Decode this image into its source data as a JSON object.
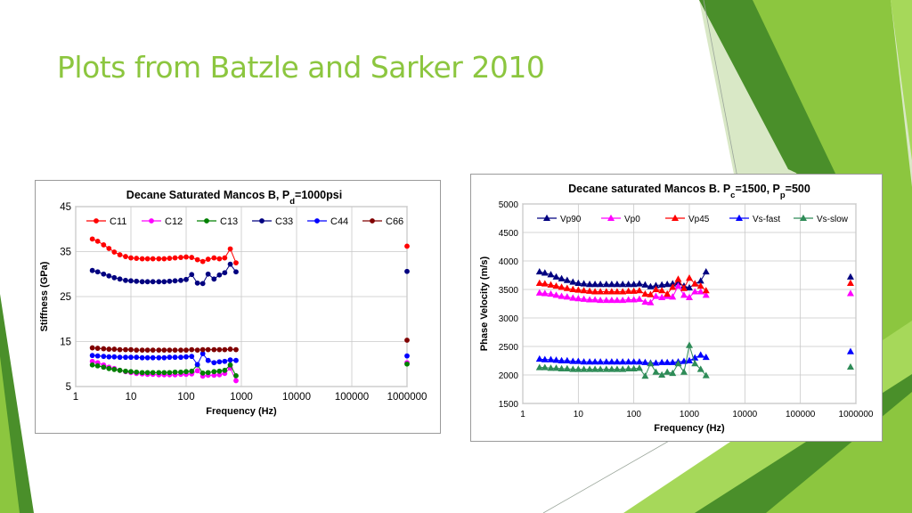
{
  "slide": {
    "title": "Plots from Batzle and Sarker 2010",
    "accent_color": "#8cc63f"
  },
  "chart_data": [
    {
      "type": "scatter",
      "title": "Decane Saturated Mancos B, P",
      "title_subscript": "d",
      "title_suffix": "=1000psi",
      "xlabel": "Frequency (Hz)",
      "ylabel": "Stiffness (GPa)",
      "x_scale": "log",
      "xlim": [
        1,
        1000000
      ],
      "ylim": [
        5,
        45
      ],
      "x_ticks": [
        "1",
        "10",
        "100",
        "1000",
        "10000",
        "100000",
        "1000000"
      ],
      "y_ticks": [
        "5",
        "15",
        "25",
        "35",
        "45"
      ],
      "grid": true,
      "legend_position": "top",
      "x": [
        2,
        2.5,
        3.2,
        4,
        5,
        6.3,
        8,
        10,
        12.6,
        16,
        20,
        25,
        32,
        40,
        50,
        63,
        80,
        100,
        126,
        160,
        200,
        250,
        320,
        400,
        500,
        630,
        800
      ],
      "series": [
        {
          "name": "C11",
          "color": "#ff0000",
          "marker": "circle",
          "values": [
            37.8,
            37.3,
            36.5,
            35.7,
            34.9,
            34.3,
            33.9,
            33.6,
            33.5,
            33.4,
            33.4,
            33.4,
            33.4,
            33.4,
            33.5,
            33.6,
            33.7,
            33.8,
            33.7,
            33.2,
            32.8,
            33.3,
            33.6,
            33.4,
            33.6,
            35.6,
            32.5
          ],
          "far_x": 1000000,
          "far_value": 36.2
        },
        {
          "name": "C12",
          "color": "#ff00ff",
          "marker": "circle",
          "values": [
            10.6,
            10.3,
            9.8,
            9.3,
            9.0,
            8.6,
            8.3,
            8.1,
            7.9,
            7.8,
            7.7,
            7.7,
            7.6,
            7.6,
            7.6,
            7.6,
            7.7,
            7.7,
            7.8,
            8.5,
            7.3,
            7.5,
            7.5,
            7.6,
            7.9,
            9.1,
            6.3
          ],
          "far_x": 1000000,
          "far_value": 10.3
        },
        {
          "name": "C13",
          "color": "#008000",
          "marker": "circle",
          "values": [
            9.8,
            9.6,
            9.3,
            9.0,
            8.8,
            8.6,
            8.4,
            8.3,
            8.2,
            8.1,
            8.1,
            8.1,
            8.1,
            8.1,
            8.1,
            8.2,
            8.2,
            8.3,
            8.4,
            9.8,
            8.0,
            8.1,
            8.3,
            8.4,
            8.6,
            9.8,
            7.4
          ],
          "far_x": 1000000,
          "far_value": 10.0
        },
        {
          "name": "C33",
          "color": "#000080",
          "marker": "circle",
          "values": [
            30.8,
            30.5,
            30.0,
            29.6,
            29.2,
            28.9,
            28.6,
            28.5,
            28.4,
            28.3,
            28.3,
            28.3,
            28.3,
            28.3,
            28.4,
            28.5,
            28.6,
            28.8,
            29.9,
            28.0,
            27.9,
            30.0,
            28.9,
            29.8,
            30.3,
            32.2,
            30.5
          ],
          "far_x": 1000000,
          "far_value": 30.6
        },
        {
          "name": "C44",
          "color": "#0000ff",
          "marker": "circle",
          "values": [
            11.9,
            11.8,
            11.7,
            11.6,
            11.6,
            11.5,
            11.5,
            11.5,
            11.5,
            11.4,
            11.4,
            11.4,
            11.4,
            11.4,
            11.5,
            11.5,
            11.5,
            11.6,
            11.7,
            9.9,
            12.3,
            10.8,
            10.3,
            10.5,
            10.6,
            10.9,
            10.8
          ],
          "far_x": 1000000,
          "far_value": 11.8
        },
        {
          "name": "C66",
          "color": "#800000",
          "marker": "circle",
          "values": [
            13.6,
            13.5,
            13.4,
            13.3,
            13.3,
            13.2,
            13.2,
            13.2,
            13.1,
            13.1,
            13.1,
            13.1,
            13.1,
            13.1,
            13.1,
            13.1,
            13.1,
            13.1,
            13.2,
            13.1,
            13.2,
            13.2,
            13.2,
            13.2,
            13.2,
            13.3,
            13.2
          ],
          "far_x": 1000000,
          "far_value": 15.3
        }
      ]
    },
    {
      "type": "scatter",
      "title": "Decane saturated Mancos B. P",
      "title_subscript": "c",
      "title_middle": "=1500, P",
      "title_subscript2": "p",
      "title_suffix": "=500",
      "xlabel": "Frequency (Hz)",
      "ylabel": "Phase Velocity (m/s)",
      "x_scale": "log",
      "xlim": [
        1,
        1000000
      ],
      "ylim": [
        1500,
        5000
      ],
      "x_ticks": [
        "1",
        "10",
        "100",
        "1000",
        "10000",
        "100000",
        "1000000"
      ],
      "y_ticks": [
        "1500",
        "2000",
        "2500",
        "3000",
        "3500",
        "4000",
        "4500",
        "5000"
      ],
      "grid": true,
      "legend_position": "top",
      "x": [
        2,
        2.5,
        3.2,
        4,
        5,
        6.3,
        8,
        10,
        12.6,
        16,
        20,
        25,
        32,
        40,
        50,
        63,
        80,
        100,
        126,
        160,
        200,
        250,
        320,
        400,
        500,
        630,
        800,
        1000,
        1260,
        1600,
        2000
      ],
      "series": [
        {
          "name": "Vp90",
          "color": "#000080",
          "marker": "triangle",
          "values": [
            3810,
            3790,
            3760,
            3720,
            3690,
            3660,
            3630,
            3610,
            3600,
            3590,
            3590,
            3590,
            3590,
            3590,
            3590,
            3590,
            3590,
            3590,
            3600,
            3580,
            3550,
            3570,
            3580,
            3590,
            3600,
            3620,
            3560,
            3530,
            3600,
            3650,
            3810
          ],
          "far_x": 800000,
          "far_value": 3720
        },
        {
          "name": "Vp0",
          "color": "#ff00ff",
          "marker": "triangle",
          "values": [
            3440,
            3430,
            3420,
            3400,
            3380,
            3370,
            3350,
            3340,
            3330,
            3320,
            3320,
            3310,
            3310,
            3310,
            3310,
            3310,
            3320,
            3320,
            3330,
            3280,
            3270,
            3380,
            3360,
            3380,
            3370,
            3560,
            3400,
            3360,
            3460,
            3460,
            3400
          ],
          "far_x": 800000,
          "far_value": 3430
        },
        {
          "name": "Vp45",
          "color": "#ff0000",
          "marker": "triangle",
          "values": [
            3610,
            3600,
            3580,
            3560,
            3540,
            3520,
            3500,
            3490,
            3480,
            3470,
            3460,
            3460,
            3460,
            3460,
            3460,
            3460,
            3470,
            3470,
            3480,
            3420,
            3410,
            3500,
            3480,
            3420,
            3540,
            3680,
            3520,
            3700,
            3600,
            3560,
            3480
          ],
          "far_x": 800000,
          "far_value": 3610
        },
        {
          "name": "Vs-fast",
          "color": "#0000ff",
          "marker": "triangle",
          "values": [
            2280,
            2270,
            2270,
            2260,
            2250,
            2250,
            2240,
            2240,
            2230,
            2230,
            2230,
            2230,
            2230,
            2230,
            2230,
            2230,
            2230,
            2230,
            2230,
            2220,
            2210,
            2210,
            2220,
            2220,
            2220,
            2230,
            2240,
            2250,
            2300,
            2350,
            2310
          ],
          "far_x": 800000,
          "far_value": 2410
        },
        {
          "name": "Vs-slow",
          "color": "#2e8b57",
          "marker": "triangle",
          "values": [
            2130,
            2130,
            2120,
            2120,
            2110,
            2110,
            2100,
            2100,
            2100,
            2100,
            2100,
            2100,
            2100,
            2100,
            2100,
            2100,
            2110,
            2110,
            2120,
            1980,
            2200,
            2050,
            2000,
            2050,
            2030,
            2200,
            2050,
            2520,
            2200,
            2100,
            1990
          ],
          "far_x": 800000,
          "far_value": 2140
        }
      ]
    }
  ]
}
